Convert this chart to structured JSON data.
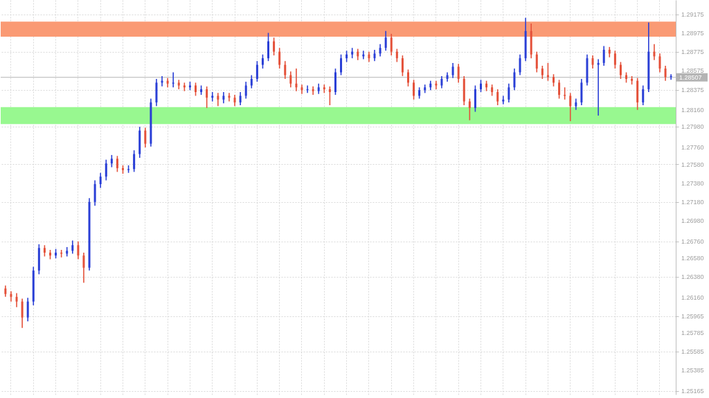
{
  "chart_data": {
    "type": "candlestick",
    "categories": [
      null,
      null,
      null,
      null,
      null,
      null,
      null,
      null,
      null,
      null,
      null,
      null,
      null,
      null,
      null,
      null,
      null,
      null,
      null,
      null,
      null,
      null,
      null,
      null,
      null,
      null,
      null,
      null,
      null,
      null,
      null,
      null,
      null,
      null,
      null,
      null,
      null,
      null,
      null,
      null,
      null,
      null,
      null,
      null,
      null,
      null,
      null,
      null,
      null,
      null,
      null,
      null,
      null,
      null,
      null,
      null,
      null,
      null,
      null,
      null,
      null,
      null,
      null,
      null,
      null,
      null,
      null,
      null,
      null,
      null,
      null,
      null,
      null,
      null,
      null,
      null,
      null,
      null,
      null,
      null,
      null,
      null,
      null,
      null,
      null,
      null,
      null,
      null,
      null,
      null,
      null,
      null,
      null,
      null,
      null,
      null,
      null,
      null,
      null,
      null,
      null,
      null,
      null,
      null,
      null,
      null,
      null,
      null,
      null,
      null,
      null,
      null,
      null,
      null,
      null,
      null,
      null,
      null,
      null,
      null
    ],
    "ohlc": [
      [
        1.2626,
        1.2629,
        1.2617,
        1.262
      ],
      [
        1.262,
        1.2623,
        1.2612,
        1.2617
      ],
      [
        1.2617,
        1.2621,
        1.2606,
        1.2612
      ],
      [
        1.2612,
        1.2615,
        1.2584,
        1.2595
      ],
      [
        1.2595,
        1.2616,
        1.2591,
        1.2612
      ],
      [
        1.2612,
        1.2649,
        1.2608,
        1.2645
      ],
      [
        1.2645,
        1.2673,
        1.2641,
        1.2669
      ],
      [
        1.2669,
        1.2672,
        1.266,
        1.2664
      ],
      [
        1.2664,
        1.2667,
        1.2657,
        1.2661
      ],
      [
        1.2661,
        1.2668,
        1.2658,
        1.2664
      ],
      [
        1.2664,
        1.2667,
        1.2659,
        1.2663
      ],
      [
        1.2663,
        1.267,
        1.266,
        1.2666
      ],
      [
        1.2666,
        1.2677,
        1.2663,
        1.2672
      ],
      [
        1.2672,
        1.2676,
        1.2657,
        1.2661
      ],
      [
        1.2661,
        1.2664,
        1.2632,
        1.2648
      ],
      [
        1.2648,
        1.2722,
        1.2645,
        1.2718
      ],
      [
        1.2718,
        1.2741,
        1.2714,
        1.2737
      ],
      [
        1.2737,
        1.2749,
        1.2733,
        1.2745
      ],
      [
        1.2745,
        1.2763,
        1.2741,
        1.2759
      ],
      [
        1.2759,
        1.2768,
        1.2755,
        1.2764
      ],
      [
        1.2764,
        1.2767,
        1.275,
        1.2754
      ],
      [
        1.2754,
        1.2757,
        1.2748,
        1.2752
      ],
      [
        1.2752,
        1.2757,
        1.2749,
        1.2753
      ],
      [
        1.2753,
        1.2773,
        1.275,
        1.2769
      ],
      [
        1.2769,
        1.2798,
        1.2765,
        1.2794
      ],
      [
        1.2794,
        1.2797,
        1.2776,
        1.278
      ],
      [
        1.278,
        1.2828,
        1.2777,
        1.2824
      ],
      [
        1.2824,
        1.2849,
        1.282,
        1.2845
      ],
      [
        1.2845,
        1.2852,
        1.2841,
        1.2847
      ],
      [
        1.2847,
        1.285,
        1.284,
        1.2844
      ],
      [
        1.2844,
        1.2856,
        1.284,
        1.2845
      ],
      [
        1.2845,
        1.2848,
        1.2838,
        1.2842
      ],
      [
        1.2842,
        1.2845,
        1.2836,
        1.284
      ],
      [
        1.284,
        1.2846,
        1.2837,
        1.2842
      ],
      [
        1.2842,
        1.2845,
        1.2831,
        1.2835
      ],
      [
        1.2835,
        1.2842,
        1.2832,
        1.2838
      ],
      [
        1.2838,
        1.2841,
        1.2818,
        1.2829
      ],
      [
        1.2829,
        1.2835,
        1.2825,
        1.2831
      ],
      [
        1.2831,
        1.2834,
        1.282,
        1.2827
      ],
      [
        1.2827,
        1.2835,
        1.2823,
        1.2831
      ],
      [
        1.2831,
        1.2834,
        1.2825,
        1.2829
      ],
      [
        1.2829,
        1.2832,
        1.282,
        1.2824
      ],
      [
        1.2824,
        1.2835,
        1.2821,
        1.2831
      ],
      [
        1.2831,
        1.2846,
        1.2828,
        1.2842
      ],
      [
        1.2842,
        1.2853,
        1.2839,
        1.2849
      ],
      [
        1.2849,
        1.2868,
        1.2846,
        1.2864
      ],
      [
        1.2864,
        1.2875,
        1.286,
        1.2871
      ],
      [
        1.2871,
        1.2898,
        1.2868,
        1.2889
      ],
      [
        1.2889,
        1.2893,
        1.2874,
        1.2878
      ],
      [
        1.2878,
        1.2882,
        1.286,
        1.2864
      ],
      [
        1.2864,
        1.2868,
        1.2849,
        1.2853
      ],
      [
        1.2853,
        1.2857,
        1.284,
        1.2844
      ],
      [
        1.2844,
        1.286,
        1.2836,
        1.284
      ],
      [
        1.284,
        1.2843,
        1.2833,
        1.2837
      ],
      [
        1.2837,
        1.2842,
        1.2834,
        1.2838
      ],
      [
        1.2838,
        1.2841,
        1.2832,
        1.2836
      ],
      [
        1.2836,
        1.2844,
        1.2833,
        1.284
      ],
      [
        1.284,
        1.2843,
        1.2834,
        1.2838
      ],
      [
        1.2838,
        1.2841,
        1.2821,
        1.2835
      ],
      [
        1.2835,
        1.286,
        1.2832,
        1.2856
      ],
      [
        1.2856,
        1.2875,
        1.2853,
        1.2871
      ],
      [
        1.2871,
        1.2879,
        1.2867,
        1.2875
      ],
      [
        1.2875,
        1.2882,
        1.2871,
        1.2878
      ],
      [
        1.2878,
        1.2881,
        1.2869,
        1.2873
      ],
      [
        1.2873,
        1.2879,
        1.287,
        1.2875
      ],
      [
        1.2875,
        1.2878,
        1.2867,
        1.2871
      ],
      [
        1.2871,
        1.288,
        1.2868,
        1.2876
      ],
      [
        1.2876,
        1.2886,
        1.2873,
        1.2882
      ],
      [
        1.2882,
        1.29,
        1.2879,
        1.2893
      ],
      [
        1.2893,
        1.2897,
        1.2874,
        1.2878
      ],
      [
        1.2878,
        1.2881,
        1.2867,
        1.2871
      ],
      [
        1.2871,
        1.2874,
        1.2852,
        1.2856
      ],
      [
        1.2856,
        1.2859,
        1.2841,
        1.2845
      ],
      [
        1.2845,
        1.2848,
        1.2827,
        1.2831
      ],
      [
        1.2831,
        1.284,
        1.2828,
        1.2837
      ],
      [
        1.2837,
        1.2843,
        1.2834,
        1.284
      ],
      [
        1.284,
        1.2847,
        1.2837,
        1.2844
      ],
      [
        1.2844,
        1.2847,
        1.2838,
        1.2842
      ],
      [
        1.2842,
        1.2852,
        1.2839,
        1.2849
      ],
      [
        1.2849,
        1.2856,
        1.2846,
        1.2853
      ],
      [
        1.2853,
        1.2866,
        1.285,
        1.2862
      ],
      [
        1.2862,
        1.2865,
        1.2845,
        1.2849
      ],
      [
        1.2849,
        1.2852,
        1.2821,
        1.2825
      ],
      [
        1.2825,
        1.2828,
        1.2805,
        1.2818
      ],
      [
        1.2818,
        1.2842,
        1.2814,
        1.2838
      ],
      [
        1.2838,
        1.2848,
        1.2835,
        1.2844
      ],
      [
        1.2844,
        1.2847,
        1.2836,
        1.284
      ],
      [
        1.284,
        1.2843,
        1.2831,
        1.2835
      ],
      [
        1.2835,
        1.2838,
        1.2821,
        1.2825
      ],
      [
        1.2825,
        1.2831,
        1.2822,
        1.2827
      ],
      [
        1.2827,
        1.2844,
        1.2824,
        1.284
      ],
      [
        1.284,
        1.286,
        1.2837,
        1.2856
      ],
      [
        1.2856,
        1.2875,
        1.2853,
        1.2871
      ],
      [
        1.2871,
        1.2914,
        1.2868,
        1.29
      ],
      [
        1.29,
        1.2908,
        1.2871,
        1.2875
      ],
      [
        1.2875,
        1.2878,
        1.2856,
        1.286
      ],
      [
        1.286,
        1.2863,
        1.2849,
        1.2853
      ],
      [
        1.2853,
        1.2866,
        1.2847,
        1.2851
      ],
      [
        1.2851,
        1.2854,
        1.2841,
        1.2845
      ],
      [
        1.2845,
        1.2848,
        1.2828,
        1.2832
      ],
      [
        1.2832,
        1.284,
        1.2827,
        1.2831
      ],
      [
        1.2831,
        1.2834,
        1.2804,
        1.282
      ],
      [
        1.282,
        1.2828,
        1.2816,
        1.2824
      ],
      [
        1.2824,
        1.2849,
        1.2821,
        1.2845
      ],
      [
        1.2845,
        1.2875,
        1.2842,
        1.2871
      ],
      [
        1.2871,
        1.2874,
        1.286,
        1.2864
      ],
      [
        1.2864,
        1.287,
        1.281,
        1.2866
      ],
      [
        1.2866,
        1.2884,
        1.2863,
        1.288
      ],
      [
        1.288,
        1.2883,
        1.2872,
        1.2876
      ],
      [
        1.2876,
        1.2879,
        1.286,
        1.2864
      ],
      [
        1.2864,
        1.2867,
        1.2849,
        1.2853
      ],
      [
        1.2853,
        1.2856,
        1.2845,
        1.2849
      ],
      [
        1.2849,
        1.2852,
        1.2843,
        1.2847
      ],
      [
        1.2847,
        1.285,
        1.2816,
        1.2824
      ],
      [
        1.2824,
        1.2842,
        1.2821,
        1.2838
      ],
      [
        1.2838,
        1.2909,
        1.2835,
        1.2878
      ],
      [
        1.2878,
        1.2886,
        1.2869,
        1.2873
      ],
      [
        1.2873,
        1.2876,
        1.2856,
        1.286
      ],
      [
        1.286,
        1.2863,
        1.2847,
        1.2851
      ],
      [
        1.2851,
        1.2854,
        1.2848,
        1.2852
      ]
    ],
    "colors": [
      "#e4513a",
      "#e4513a",
      "#e4513a",
      "#e4513a",
      "#2a3fd6",
      "#2a3fd6",
      "#2a3fd6",
      "#e4513a",
      "#e4513a",
      "#2a3fd6",
      "#e4513a",
      "#2a3fd6",
      "#2a3fd6",
      "#e4513a",
      "#e4513a",
      "#2a3fd6",
      "#2a3fd6",
      "#2a3fd6",
      "#2a3fd6",
      "#2a3fd6",
      "#e4513a",
      "#e4513a",
      "#2a3fd6",
      "#2a3fd6",
      "#2a3fd6",
      "#e4513a",
      "#2a3fd6",
      "#2a3fd6",
      "#2a3fd6",
      "#e4513a",
      "#2a3fd6",
      "#e4513a",
      "#e4513a",
      "#2a3fd6",
      "#e4513a",
      "#2a3fd6",
      "#e4513a",
      "#2a3fd6",
      "#e4513a",
      "#2a3fd6",
      "#e4513a",
      "#e4513a",
      "#2a3fd6",
      "#2a3fd6",
      "#2a3fd6",
      "#2a3fd6",
      "#2a3fd6",
      "#2a3fd6",
      "#e4513a",
      "#e4513a",
      "#e4513a",
      "#e4513a",
      "#e4513a",
      "#e4513a",
      "#2a3fd6",
      "#e4513a",
      "#2a3fd6",
      "#e4513a",
      "#e4513a",
      "#2a3fd6",
      "#2a3fd6",
      "#2a3fd6",
      "#2a3fd6",
      "#e4513a",
      "#2a3fd6",
      "#e4513a",
      "#2a3fd6",
      "#2a3fd6",
      "#2a3fd6",
      "#e4513a",
      "#e4513a",
      "#e4513a",
      "#e4513a",
      "#e4513a",
      "#2a3fd6",
      "#2a3fd6",
      "#2a3fd6",
      "#e4513a",
      "#2a3fd6",
      "#2a3fd6",
      "#2a3fd6",
      "#e4513a",
      "#e4513a",
      "#e4513a",
      "#2a3fd6",
      "#2a3fd6",
      "#e4513a",
      "#e4513a",
      "#e4513a",
      "#2a3fd6",
      "#2a3fd6",
      "#2a3fd6",
      "#2a3fd6",
      "#2a3fd6",
      "#e4513a",
      "#e4513a",
      "#e4513a",
      "#e4513a",
      "#e4513a",
      "#e4513a",
      "#e4513a",
      "#e4513a",
      "#2a3fd6",
      "#2a3fd6",
      "#2a3fd6",
      "#e4513a",
      "#2a3fd6",
      "#2a3fd6",
      "#e4513a",
      "#e4513a",
      "#e4513a",
      "#e4513a",
      "#e4513a",
      "#e4513a",
      "#2a3fd6",
      "#2a3fd6",
      "#e4513a",
      "#e4513a",
      "#e4513a",
      "#2a3fd6"
    ],
    "ylim": [
      1.2513,
      1.2933
    ],
    "yticks": [
      {
        "value": 1.29175,
        "label": "1.29175"
      },
      {
        "value": 1.28975,
        "label": "1.28975"
      },
      {
        "value": 1.28775,
        "label": "1.28775"
      },
      {
        "value": 1.28575,
        "label": "1.28575"
      },
      {
        "value": 1.28375,
        "label": "1.28375"
      },
      {
        "value": 1.2816,
        "label": "1.28160"
      },
      {
        "value": 1.2798,
        "label": "1.27980"
      },
      {
        "value": 1.2776,
        "label": "1.27760"
      },
      {
        "value": 1.2758,
        "label": "1.27580"
      },
      {
        "value": 1.2738,
        "label": "1.27380"
      },
      {
        "value": 1.2718,
        "label": "1.27180"
      },
      {
        "value": 1.2698,
        "label": "1.26980"
      },
      {
        "value": 1.2676,
        "label": "1.26760"
      },
      {
        "value": 1.2658,
        "label": "1.26580"
      },
      {
        "value": 1.2638,
        "label": "1.26380"
      },
      {
        "value": 1.2616,
        "label": "1.26160"
      },
      {
        "value": 1.25965,
        "label": "1.25965"
      },
      {
        "value": 1.25785,
        "label": "1.25785"
      },
      {
        "value": 1.25585,
        "label": "1.25585"
      },
      {
        "value": 1.25385,
        "label": "1.25385"
      },
      {
        "value": 1.25165,
        "label": "1.25165"
      }
    ],
    "bands": [
      {
        "axis": "y",
        "from": 1.2894,
        "to": 1.291,
        "color": "#fa9a74"
      },
      {
        "axis": "y",
        "from": 1.2801,
        "to": 1.2819,
        "color": "#98f890"
      }
    ],
    "ref_lines": [
      {
        "axis": "y",
        "value": 1.28507,
        "label": "1.28507",
        "color": "#b4b4b4"
      }
    ],
    "grid": true,
    "tick_labels": "y"
  }
}
